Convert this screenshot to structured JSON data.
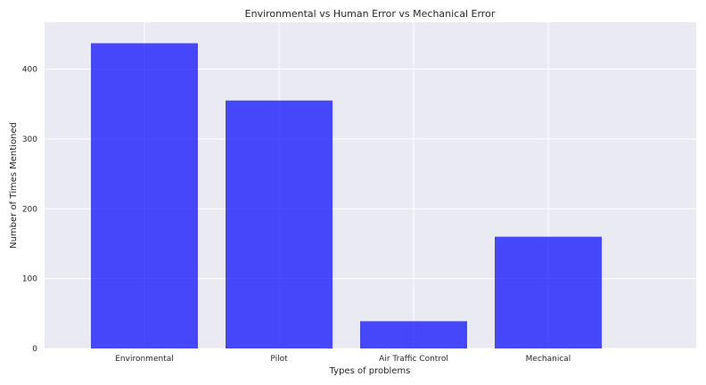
{
  "chart_data": {
    "type": "bar",
    "title": "Environmental vs Human Error vs Mechanical Error",
    "xlabel": "Types of problems",
    "ylabel": "Number of Times Mentioned",
    "categories": [
      "Environmental",
      "Pilot",
      "Air Traffic Control",
      "Mechanical"
    ],
    "values": [
      437,
      355,
      39,
      160
    ],
    "ylim": [
      0,
      467
    ],
    "yticks": [
      0,
      100,
      200,
      300,
      400
    ],
    "grid": true,
    "bar_color": "#0000ff",
    "bar_opacity": 0.7,
    "background_color": "#eaeaf2",
    "grid_color": "#ffffff"
  }
}
